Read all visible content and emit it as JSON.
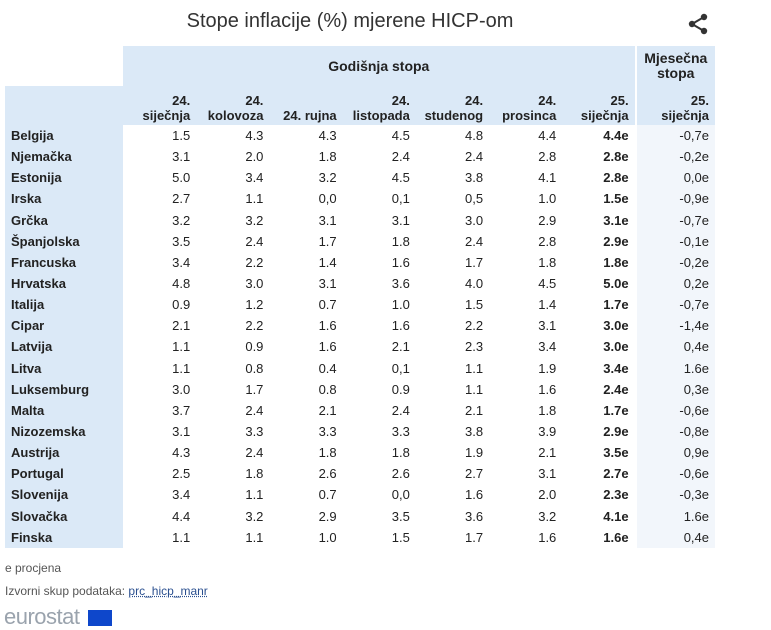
{
  "title": "Stope inflacije (%) mjerene HICP-om",
  "header": {
    "annual_group": "Godišnja stopa",
    "monthly_group": "Mjesečna stopa",
    "columns": [
      {
        "top": "24.",
        "bottom": "siječnja"
      },
      {
        "top": "24.",
        "bottom": "kolovoza"
      },
      {
        "top": "",
        "bottom": "24. rujna"
      },
      {
        "top": "24.",
        "bottom": "listopada"
      },
      {
        "top": "24.",
        "bottom": "studenog"
      },
      {
        "top": "24.",
        "bottom": "prosinca"
      },
      {
        "top": "25.",
        "bottom": "siječnja"
      },
      {
        "top": "25.",
        "bottom": "siječnja"
      }
    ]
  },
  "rows": [
    {
      "country": "Belgija",
      "values": [
        "1.5",
        "4.3",
        "4.3",
        "4.5",
        "4.8",
        "4.4",
        "4.4e",
        "-0,7e"
      ]
    },
    {
      "country": "Njemačka",
      "values": [
        "3.1",
        "2.0",
        "1.8",
        "2.4",
        "2.4",
        "2.8",
        "2.8e",
        "-0,2e"
      ]
    },
    {
      "country": "Estonija",
      "values": [
        "5.0",
        "3.4",
        "3.2",
        "4.5",
        "3.8",
        "4.1",
        "2.8e",
        "0,0e"
      ]
    },
    {
      "country": "Irska",
      "values": [
        "2.7",
        "1.1",
        "0,0",
        "0,1",
        "0,5",
        "1.0",
        "1.5e",
        "-0,9e"
      ]
    },
    {
      "country": "Grčka",
      "values": [
        "3.2",
        "3.2",
        "3.1",
        "3.1",
        "3.0",
        "2.9",
        "3.1e",
        "-0,7e"
      ]
    },
    {
      "country": "Španjolska",
      "values": [
        "3.5",
        "2.4",
        "1.7",
        "1.8",
        "2.4",
        "2.8",
        "2.9e",
        "-0,1e"
      ]
    },
    {
      "country": "Francuska",
      "values": [
        "3.4",
        "2.2",
        "1.4",
        "1.6",
        "1.7",
        "1.8",
        "1.8e",
        "-0,2e"
      ]
    },
    {
      "country": "Hrvatska",
      "values": [
        "4.8",
        "3.0",
        "3.1",
        "3.6",
        "4.0",
        "4.5",
        "5.0e",
        "0,2e"
      ]
    },
    {
      "country": "Italija",
      "values": [
        "0.9",
        "1.2",
        "0.7",
        "1.0",
        "1.5",
        "1.4",
        "1.7e",
        "-0,7e"
      ]
    },
    {
      "country": "Cipar",
      "values": [
        "2.1",
        "2.2",
        "1.6",
        "1.6",
        "2.2",
        "3.1",
        "3.0e",
        "-1,4e"
      ]
    },
    {
      "country": "Latvija",
      "values": [
        "1.1",
        "0.9",
        "1.6",
        "2.1",
        "2.3",
        "3.4",
        "3.0e",
        "0,4e"
      ]
    },
    {
      "country": "Litva",
      "values": [
        "1.1",
        "0.8",
        "0.4",
        "0,1",
        "1.1",
        "1.9",
        "3.4e",
        "1.6e"
      ]
    },
    {
      "country": "Luksemburg",
      "values": [
        "3.0",
        "1.7",
        "0.8",
        "0.9",
        "1.1",
        "1.6",
        "2.4e",
        "0,3e"
      ]
    },
    {
      "country": "Malta",
      "values": [
        "3.7",
        "2.4",
        "2.1",
        "2.4",
        "2.1",
        "1.8",
        "1.7e",
        "-0,6e"
      ]
    },
    {
      "country": "Nizozemska",
      "values": [
        "3.1",
        "3.3",
        "3.3",
        "3.3",
        "3.8",
        "3.9",
        "2.9e",
        "-0,8e"
      ]
    },
    {
      "country": "Austrija",
      "values": [
        "4.3",
        "2.4",
        "1.8",
        "1.8",
        "1.9",
        "2.1",
        "3.5e",
        "0,9e"
      ]
    },
    {
      "country": "Portugal",
      "values": [
        "2.5",
        "1.8",
        "2.6",
        "2.6",
        "2.7",
        "3.1",
        "2.7e",
        "-0,6e"
      ]
    },
    {
      "country": "Slovenija",
      "values": [
        "3.4",
        "1.1",
        "0.7",
        "0,0",
        "1.6",
        "2.0",
        "2.3e",
        "-0,3e"
      ]
    },
    {
      "country": "Slovačka",
      "values": [
        "4.4",
        "3.2",
        "2.9",
        "3.5",
        "3.6",
        "3.2",
        "4.1e",
        "1.6e"
      ]
    },
    {
      "country": "Finska",
      "values": [
        "1.1",
        "1.1",
        "1.0",
        "1.5",
        "1.7",
        "1.6",
        "1.6e",
        "0,4e"
      ]
    }
  ],
  "footnote": "e procjena",
  "source_label": "Izvorni skup podataka:",
  "source_link": "prc_hicp_manr",
  "logo_text": "eurostat",
  "share_icon": "share-icon",
  "colors": {
    "header_bg": "#dbe9f7",
    "link": "#2a4f8f"
  }
}
